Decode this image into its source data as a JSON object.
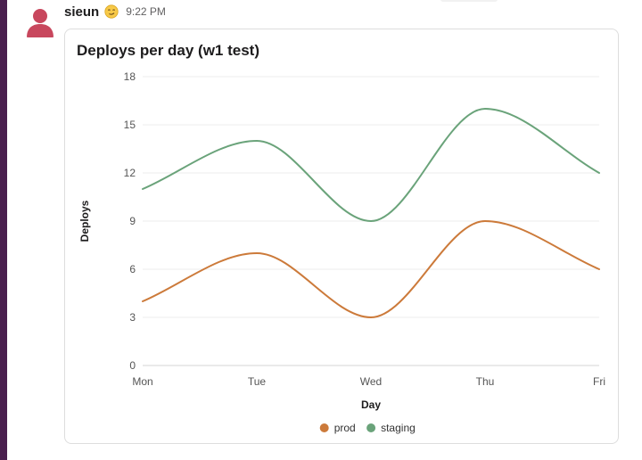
{
  "message": {
    "username": "sieun",
    "status_emoji": "smirk-face-icon",
    "timestamp": "9:22 PM"
  },
  "colors": {
    "sidebar": "#4a1f4e",
    "avatar": "#c8475d",
    "prod": "#cc7a3a",
    "staging": "#6aa37a"
  },
  "chart_data": {
    "type": "line",
    "title": "Deploys per day (w1 test)",
    "xlabel": "Day",
    "ylabel": "Deploys",
    "categories": [
      "Mon",
      "Tue",
      "Wed",
      "Thu",
      "Fri"
    ],
    "ylim": [
      0,
      18
    ],
    "yticks": [
      0,
      3,
      6,
      9,
      12,
      15,
      18
    ],
    "grid": true,
    "smooth": true,
    "legend_position": "bottom",
    "series": [
      {
        "name": "prod",
        "values": [
          4,
          7,
          3,
          9,
          6
        ],
        "color": "#cc7a3a"
      },
      {
        "name": "staging",
        "values": [
          11,
          14,
          9,
          16,
          12
        ],
        "color": "#6aa37a"
      }
    ]
  }
}
